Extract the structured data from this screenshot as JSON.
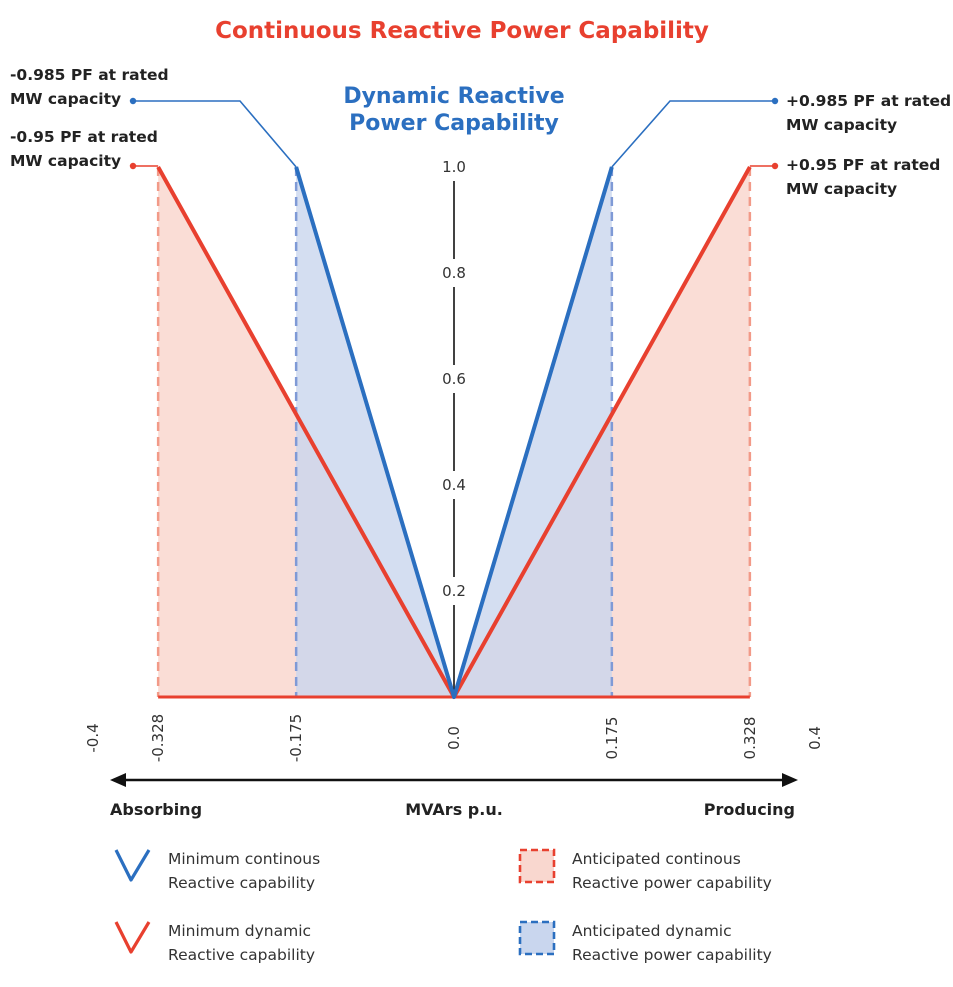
{
  "title": "Continuous Reactive Power Capability",
  "chart_data": {
    "type": "area",
    "subtitle": "Dynamic Reactive Power Capability",
    "x_axis": {
      "label": "MVArs p.u.",
      "left_label": "Absorbing",
      "right_label": "Producing",
      "range": [
        -0.4,
        0.4
      ],
      "ticks": [
        "-0.4",
        "-0.328",
        "-0.175",
        "0.0",
        "0.175",
        "0.328",
        "0.4"
      ],
      "tick_values": [
        -0.4,
        -0.328,
        -0.175,
        0.0,
        0.175,
        0.328,
        0.4
      ]
    },
    "y_axis": {
      "range": [
        0,
        1.0
      ],
      "ticks": [
        "0.2",
        "0.4",
        "0.6",
        "0.8",
        "1.0"
      ],
      "tick_values": [
        0.2,
        0.4,
        0.6,
        0.8,
        1.0
      ]
    },
    "series": [
      {
        "name": "Minimum continous Reactive capability",
        "color": "#2b6fc0",
        "points": [
          [
            -0.175,
            1.0
          ],
          [
            0.0,
            0.0
          ],
          [
            0.175,
            1.0
          ]
        ]
      },
      {
        "name": "Minimum dynamic Reactive capability",
        "color": "#e8402f",
        "points": [
          [
            -0.328,
            1.0
          ],
          [
            0.0,
            0.0
          ],
          [
            0.328,
            1.0
          ]
        ]
      }
    ],
    "regions": [
      {
        "name": "Anticipated continous Reactive power capability",
        "fill": "#f9d7cf",
        "edge": "#f29a88",
        "x_extent": [
          -0.328,
          0.328
        ]
      },
      {
        "name": "Anticipated dynamic Reactive power capability",
        "fill": "#c9d6ee",
        "edge": "#7f9ad6",
        "x_extent": [
          -0.175,
          0.175
        ]
      }
    ],
    "annotations": {
      "left_blue": [
        "-0.985 PF at rated",
        "MW capacity"
      ],
      "left_red": [
        "-0.95 PF at rated",
        "MW capacity"
      ],
      "right_blue": [
        "+0.985 PF at rated",
        "MW capacity"
      ],
      "right_red": [
        "+0.95 PF at rated",
        "MW capacity"
      ]
    },
    "legend": [
      {
        "kind": "v",
        "color": "#2b6fc0",
        "lines": [
          "Minimum continous",
          "Reactive capability"
        ]
      },
      {
        "kind": "box",
        "fill": "#f9d7cf",
        "edge": "#e8402f",
        "lines": [
          "Anticipated continous",
          "Reactive power capability"
        ]
      },
      {
        "kind": "v",
        "color": "#e8402f",
        "lines": [
          "Minimum dynamic",
          "Reactive capability"
        ]
      },
      {
        "kind": "box",
        "fill": "#c9d6ee",
        "edge": "#2b6fc0",
        "lines": [
          "Anticipated dynamic",
          "Reactive power capability"
        ]
      }
    ]
  }
}
